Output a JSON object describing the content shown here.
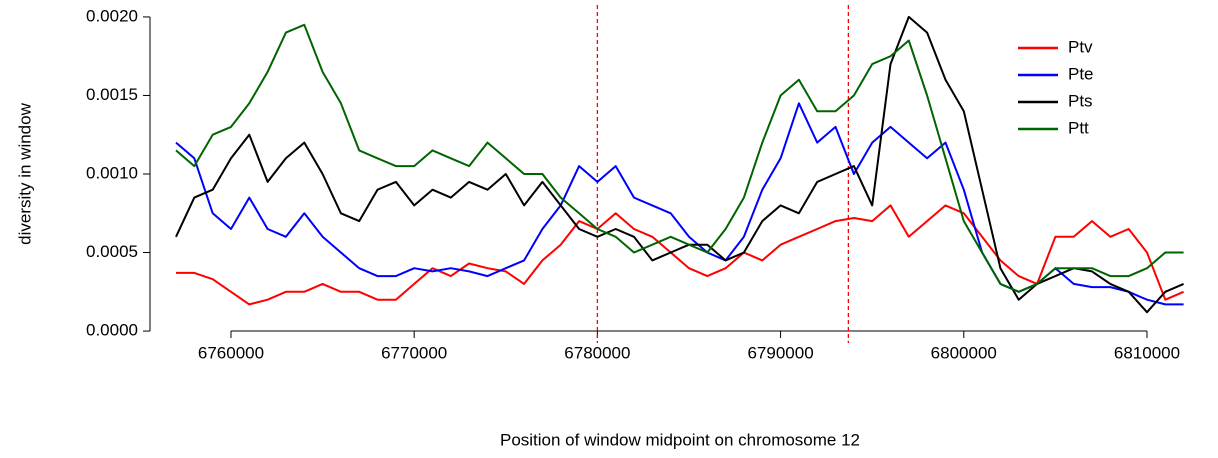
{
  "chart_data": {
    "type": "line",
    "y_label": "diversity in window",
    "x_label": "Position of window midpoint on chromosome 12",
    "x": [
      6757000,
      6758000,
      6759000,
      6760000,
      6761000,
      6762000,
      6763000,
      6764000,
      6765000,
      6766000,
      6767000,
      6768000,
      6769000,
      6770000,
      6771000,
      6772000,
      6773000,
      6774000,
      6775000,
      6776000,
      6777000,
      6778000,
      6779000,
      6780000,
      6781000,
      6782000,
      6783000,
      6784000,
      6785000,
      6786000,
      6787000,
      6788000,
      6789000,
      6790000,
      6791000,
      6792000,
      6793000,
      6794000,
      6795000,
      6796000,
      6797000,
      6798000,
      6799000,
      6800000,
      6801000,
      6802000,
      6803000,
      6804000,
      6805000,
      6806000,
      6807000,
      6808000,
      6809000,
      6810000,
      6811000,
      6812000
    ],
    "series": [
      {
        "name": "Ptv",
        "color": "#ff0000",
        "values": [
          0.00037,
          0.00037,
          0.00033,
          0.00025,
          0.00017,
          0.0002,
          0.00025,
          0.00025,
          0.0003,
          0.00025,
          0.00025,
          0.0002,
          0.0002,
          0.0003,
          0.0004,
          0.00035,
          0.00043,
          0.0004,
          0.00038,
          0.0003,
          0.00045,
          0.00055,
          0.0007,
          0.00065,
          0.00075,
          0.00065,
          0.0006,
          0.0005,
          0.0004,
          0.00035,
          0.0004,
          0.0005,
          0.00045,
          0.00055,
          0.0006,
          0.00065,
          0.0007,
          0.00072,
          0.0007,
          0.0008,
          0.0006,
          0.0007,
          0.0008,
          0.00075,
          0.0006,
          0.00045,
          0.00035,
          0.0003,
          0.0006,
          0.0006,
          0.0007,
          0.0006,
          0.00065,
          0.0005,
          0.0002,
          0.00025
        ]
      },
      {
        "name": "Pte",
        "color": "#0000ff",
        "values": [
          0.0012,
          0.0011,
          0.00075,
          0.00065,
          0.00085,
          0.00065,
          0.0006,
          0.00075,
          0.0006,
          0.0005,
          0.0004,
          0.00035,
          0.00035,
          0.0004,
          0.00038,
          0.0004,
          0.00038,
          0.00035,
          0.0004,
          0.00045,
          0.00065,
          0.0008,
          0.00105,
          0.00095,
          0.00105,
          0.00085,
          0.0008,
          0.00075,
          0.0006,
          0.0005,
          0.00045,
          0.0006,
          0.0009,
          0.0011,
          0.00145,
          0.0012,
          0.0013,
          0.001,
          0.0012,
          0.0013,
          0.0012,
          0.0011,
          0.0012,
          0.0009,
          0.0005,
          0.0003,
          0.00025,
          0.0003,
          0.0004,
          0.0003,
          0.00028,
          0.00028,
          0.00025,
          0.0002,
          0.00017,
          0.00017
        ]
      },
      {
        "name": "Pts",
        "color": "#000000",
        "values": [
          0.0006,
          0.00085,
          0.0009,
          0.0011,
          0.00125,
          0.00095,
          0.0011,
          0.0012,
          0.001,
          0.00075,
          0.0007,
          0.0009,
          0.00095,
          0.0008,
          0.0009,
          0.00085,
          0.00095,
          0.0009,
          0.001,
          0.0008,
          0.00095,
          0.0008,
          0.00065,
          0.0006,
          0.00065,
          0.0006,
          0.00045,
          0.0005,
          0.00055,
          0.00055,
          0.00045,
          0.0005,
          0.0007,
          0.0008,
          0.00075,
          0.00095,
          0.001,
          0.00105,
          0.0008,
          0.0017,
          0.002,
          0.0019,
          0.0016,
          0.0014,
          0.0009,
          0.0004,
          0.0002,
          0.0003,
          0.00035,
          0.0004,
          0.00038,
          0.0003,
          0.00025,
          0.00012,
          0.00025,
          0.0003
        ]
      },
      {
        "name": "Ptt",
        "color": "#006400",
        "values": [
          0.00115,
          0.00105,
          0.00125,
          0.0013,
          0.00145,
          0.00165,
          0.0019,
          0.00195,
          0.00165,
          0.00145,
          0.00115,
          0.0011,
          0.00105,
          0.00105,
          0.00115,
          0.0011,
          0.00105,
          0.0012,
          0.0011,
          0.001,
          0.001,
          0.00085,
          0.00075,
          0.00065,
          0.0006,
          0.0005,
          0.00055,
          0.0006,
          0.00055,
          0.0005,
          0.00065,
          0.00085,
          0.0012,
          0.0015,
          0.0016,
          0.0014,
          0.0014,
          0.0015,
          0.0017,
          0.00175,
          0.00185,
          0.0015,
          0.0011,
          0.0007,
          0.0005,
          0.0003,
          0.00025,
          0.0003,
          0.0004,
          0.0004,
          0.0004,
          0.00035,
          0.00035,
          0.0004,
          0.0005,
          0.0005
        ]
      }
    ],
    "vlines": [
      6780000,
      6793700
    ],
    "vline_color": "#ff0000",
    "xlim": [
      6755580,
      6813440
    ],
    "ylim": [
      -7.6e-05,
      0.002076
    ],
    "xticks": [
      6760000,
      6770000,
      6780000,
      6790000,
      6800000,
      6810000
    ],
    "yticks": [
      {
        "value": 0,
        "label": "0.0000"
      },
      {
        "value": 0.0005,
        "label": "0.0005"
      },
      {
        "value": 0.001,
        "label": "0.0010"
      },
      {
        "value": 0.0015,
        "label": "0.0015"
      },
      {
        "value": 0.002,
        "label": "0.0020"
      }
    ],
    "legend": "topright"
  }
}
